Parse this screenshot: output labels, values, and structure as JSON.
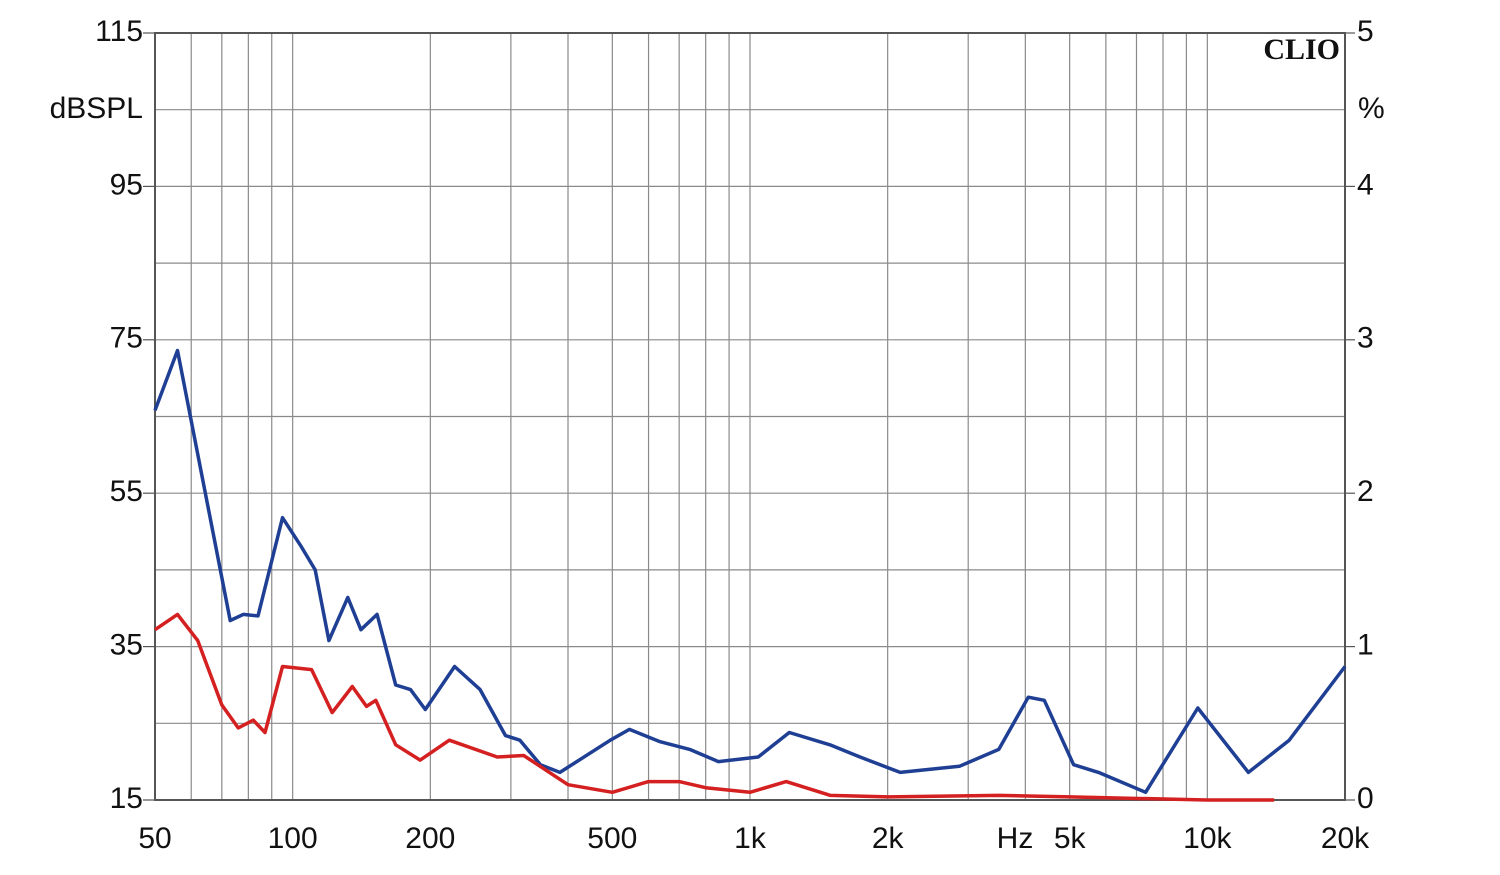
{
  "chart_data": {
    "type": "line",
    "brand": "CLIO",
    "y_label": "dBSPL",
    "y2_label": "%",
    "x_unit_label": "Hz",
    "x_scale": "log",
    "grid": true,
    "xlim": [
      50,
      20000
    ],
    "xticks": [
      50,
      100,
      200,
      500,
      {
        "value": 1000,
        "label": "1k"
      },
      {
        "value": 2000,
        "label": "2k"
      },
      {
        "value": 5000,
        "label": "5k"
      },
      {
        "value": 10000,
        "label": "10k"
      },
      {
        "value": 20000,
        "label": "20k"
      }
    ],
    "xgrid": [
      60,
      70,
      80,
      90,
      300,
      400,
      600,
      700,
      800,
      900,
      3000,
      4000,
      6000,
      7000,
      8000,
      9000
    ],
    "ylim": [
      15,
      115
    ],
    "yticks": [
      15,
      35,
      55,
      75,
      95,
      115
    ],
    "ygrid": [
      25,
      45,
      65,
      85,
      105
    ],
    "y2lim": [
      0,
      5
    ],
    "y2ticks": [
      0,
      1,
      2,
      3,
      4,
      5
    ],
    "series": [
      {
        "name": "blue",
        "color": "#1f3f94",
        "axis": "y2",
        "x": [
          50,
          56,
          73,
          78,
          84,
          95,
          104,
          112,
          120,
          132,
          141,
          153,
          168,
          181,
          195,
          226,
          257,
          292,
          314,
          348,
          384,
          495,
          545,
          636,
          738,
          853,
          1042,
          1219,
          1495,
          1740,
          2130,
          2870,
          3500,
          4060,
          4400,
          5100,
          5780,
          7330,
          9530,
          12300,
          15100,
          20000
        ],
        "values": [
          2.54,
          2.93,
          1.17,
          1.21,
          1.2,
          1.84,
          1.66,
          1.5,
          1.04,
          1.32,
          1.11,
          1.21,
          0.75,
          0.72,
          0.59,
          0.87,
          0.72,
          0.42,
          0.39,
          0.23,
          0.18,
          0.39,
          0.46,
          0.38,
          0.33,
          0.25,
          0.28,
          0.44,
          0.36,
          0.28,
          0.18,
          0.22,
          0.33,
          0.67,
          0.65,
          0.23,
          0.18,
          0.05,
          0.6,
          0.18,
          0.39,
          0.87
        ]
      },
      {
        "name": "red",
        "color": "#d42020",
        "axis": "y2",
        "x": [
          50,
          56,
          62,
          70,
          76,
          82,
          87,
          95,
          110,
          122,
          135,
          145,
          152,
          168,
          190,
          220,
          280,
          320,
          400,
          500,
          600,
          700,
          800,
          1000,
          1200,
          1500,
          2000,
          3500,
          5000,
          10000,
          14000
        ],
        "values": [
          1.11,
          1.21,
          1.04,
          0.62,
          0.47,
          0.52,
          0.44,
          0.87,
          0.85,
          0.57,
          0.74,
          0.61,
          0.65,
          0.36,
          0.26,
          0.39,
          0.28,
          0.29,
          0.1,
          0.05,
          0.12,
          0.12,
          0.08,
          0.05,
          0.12,
          0.03,
          0.02,
          0.03,
          0.02,
          0.0,
          0.0
        ]
      }
    ]
  }
}
